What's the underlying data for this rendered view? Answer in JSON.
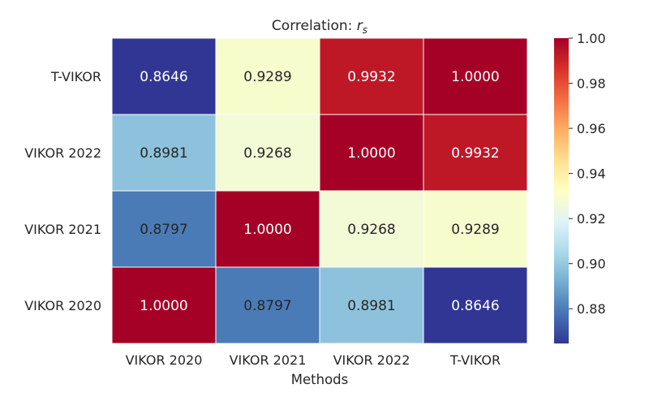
{
  "chart_data": {
    "type": "heatmap",
    "title_prefix": "Correlation: ",
    "title_symbol": "r",
    "title_subscript": "s",
    "xlabel": "Methods",
    "ylabel": "",
    "x_categories": [
      "VIKOR 2020",
      "VIKOR 2021",
      "VIKOR 2022",
      "T-VIKOR"
    ],
    "y_categories": [
      "T-VIKOR",
      "VIKOR 2022",
      "VIKOR 2021",
      "VIKOR 2020"
    ],
    "values": [
      [
        0.8646,
        0.9289,
        0.9932,
        1.0
      ],
      [
        0.8981,
        0.9268,
        1.0,
        0.9932
      ],
      [
        0.8797,
        1.0,
        0.9268,
        0.9289
      ],
      [
        1.0,
        0.8797,
        0.8981,
        0.8646
      ]
    ],
    "labels": [
      [
        "0.8646",
        "0.9289",
        "0.9932",
        "1.0000"
      ],
      [
        "0.8981",
        "0.9268",
        "1.0000",
        "0.9932"
      ],
      [
        "0.8797",
        "1.0000",
        "0.9268",
        "0.9289"
      ],
      [
        "1.0000",
        "0.8797",
        "0.8981",
        "0.8646"
      ]
    ],
    "colormap": "RdYlBu_r",
    "vmin": 0.8646,
    "vmax": 1.0,
    "colorbar": {
      "ticks": [
        0.88,
        0.9,
        0.92,
        0.94,
        0.96,
        0.98,
        1.0
      ],
      "tick_labels": [
        "0.88",
        "0.90",
        "0.92",
        "0.94",
        "0.96",
        "0.98",
        "1.00"
      ]
    },
    "grid": false,
    "legend": "colorbar-right"
  }
}
